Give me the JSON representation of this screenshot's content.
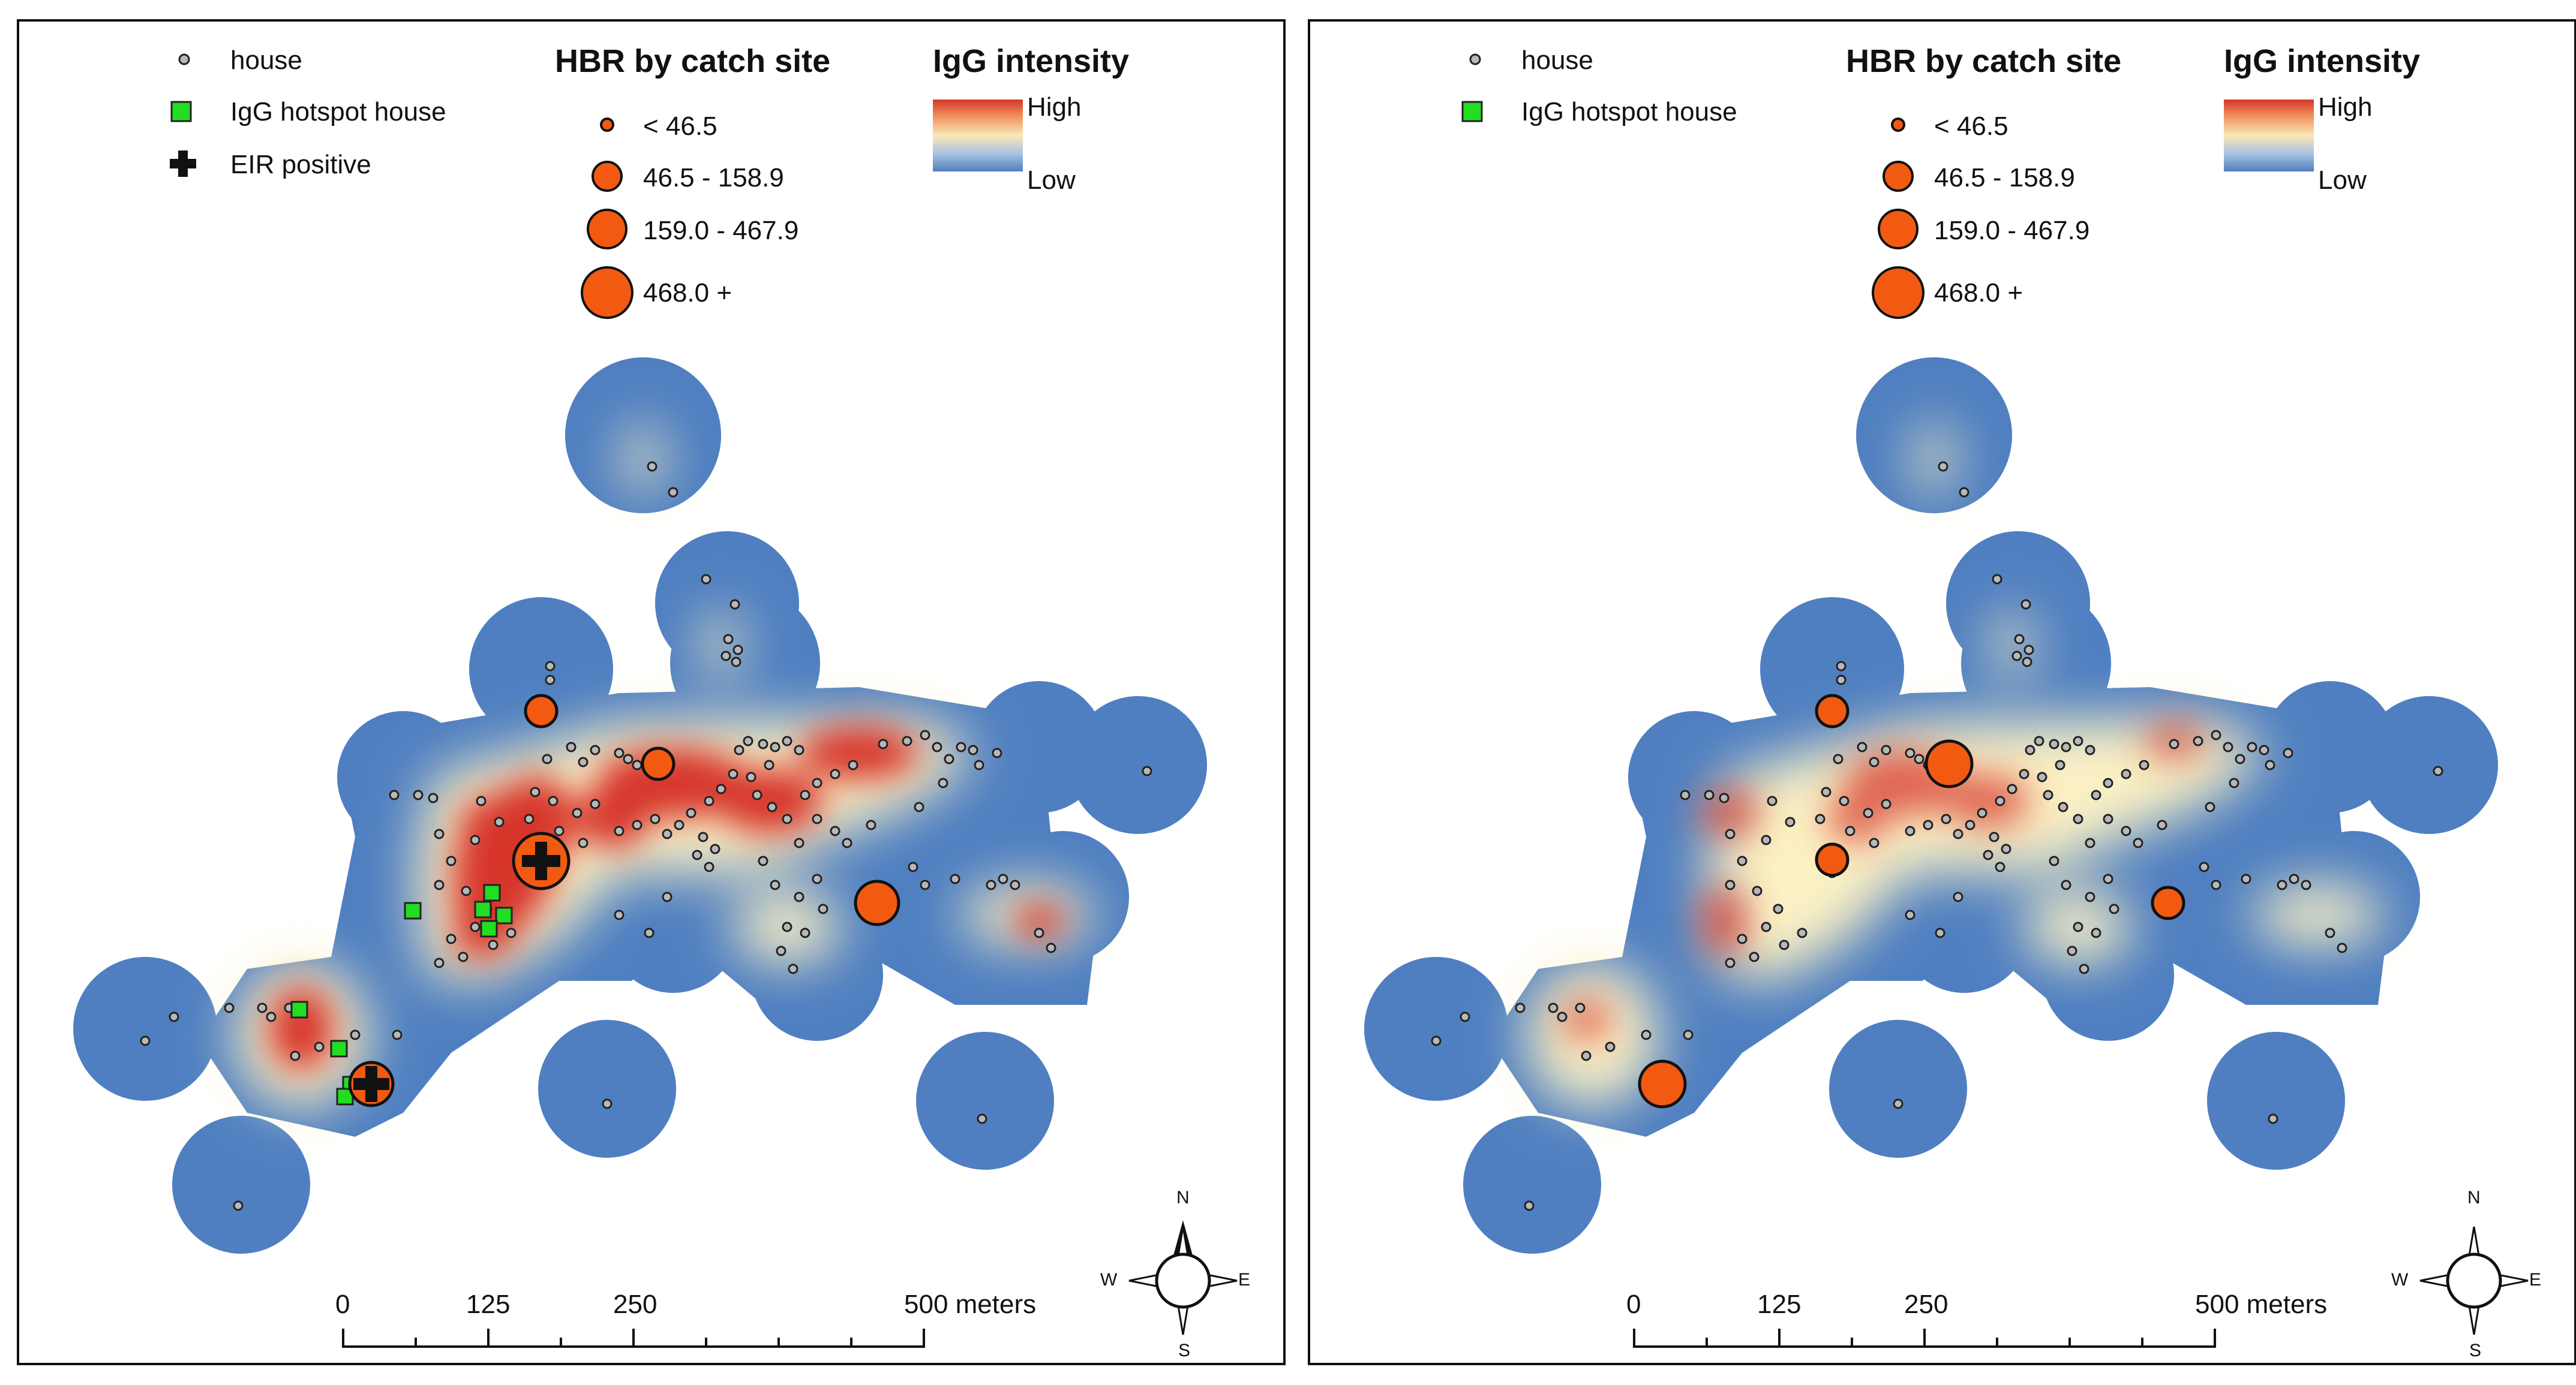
{
  "panels": [
    {
      "id": "left",
      "legend": {
        "house_label": "house",
        "hotspot_label": "IgG hotspot house",
        "eir_label": "EIR positive",
        "hbr_title": "HBR by catch site",
        "hbr_classes": [
          "< 46.5",
          "46.5 - 158.9",
          "159.0 - 467.9",
          "468.0 +"
        ],
        "igg_title": "IgG intensity",
        "igg_high": "High",
        "igg_low": "Low"
      },
      "scale": {
        "ticks": [
          "0",
          "125",
          "250",
          "500 meters"
        ]
      },
      "compass": {
        "n": "N",
        "s": "S",
        "e": "E",
        "w": "W"
      }
    },
    {
      "id": "right",
      "legend": {
        "house_label": "house",
        "hotspot_label": "IgG hotspot house",
        "hbr_title": "HBR by catch site",
        "hbr_classes": [
          "< 46.5",
          "46.5 - 158.9",
          "159.0 - 467.9",
          "468.0 +"
        ],
        "igg_title": "IgG intensity",
        "igg_high": "High",
        "igg_low": "Low"
      },
      "scale": {
        "ticks": [
          "0",
          "125",
          "250",
          "500 meters"
        ]
      },
      "compass": {
        "n": "N",
        "s": "S",
        "e": "E",
        "w": "W"
      }
    }
  ],
  "colors": {
    "house_fill": "#b8b8b8",
    "hotspot_fill": "#22dd22",
    "catch_site_fill": "#f25a12",
    "igg_low": "#4f7fc1",
    "igg_mid": "#fbf1c4",
    "igg_high": "#d7352a"
  }
}
